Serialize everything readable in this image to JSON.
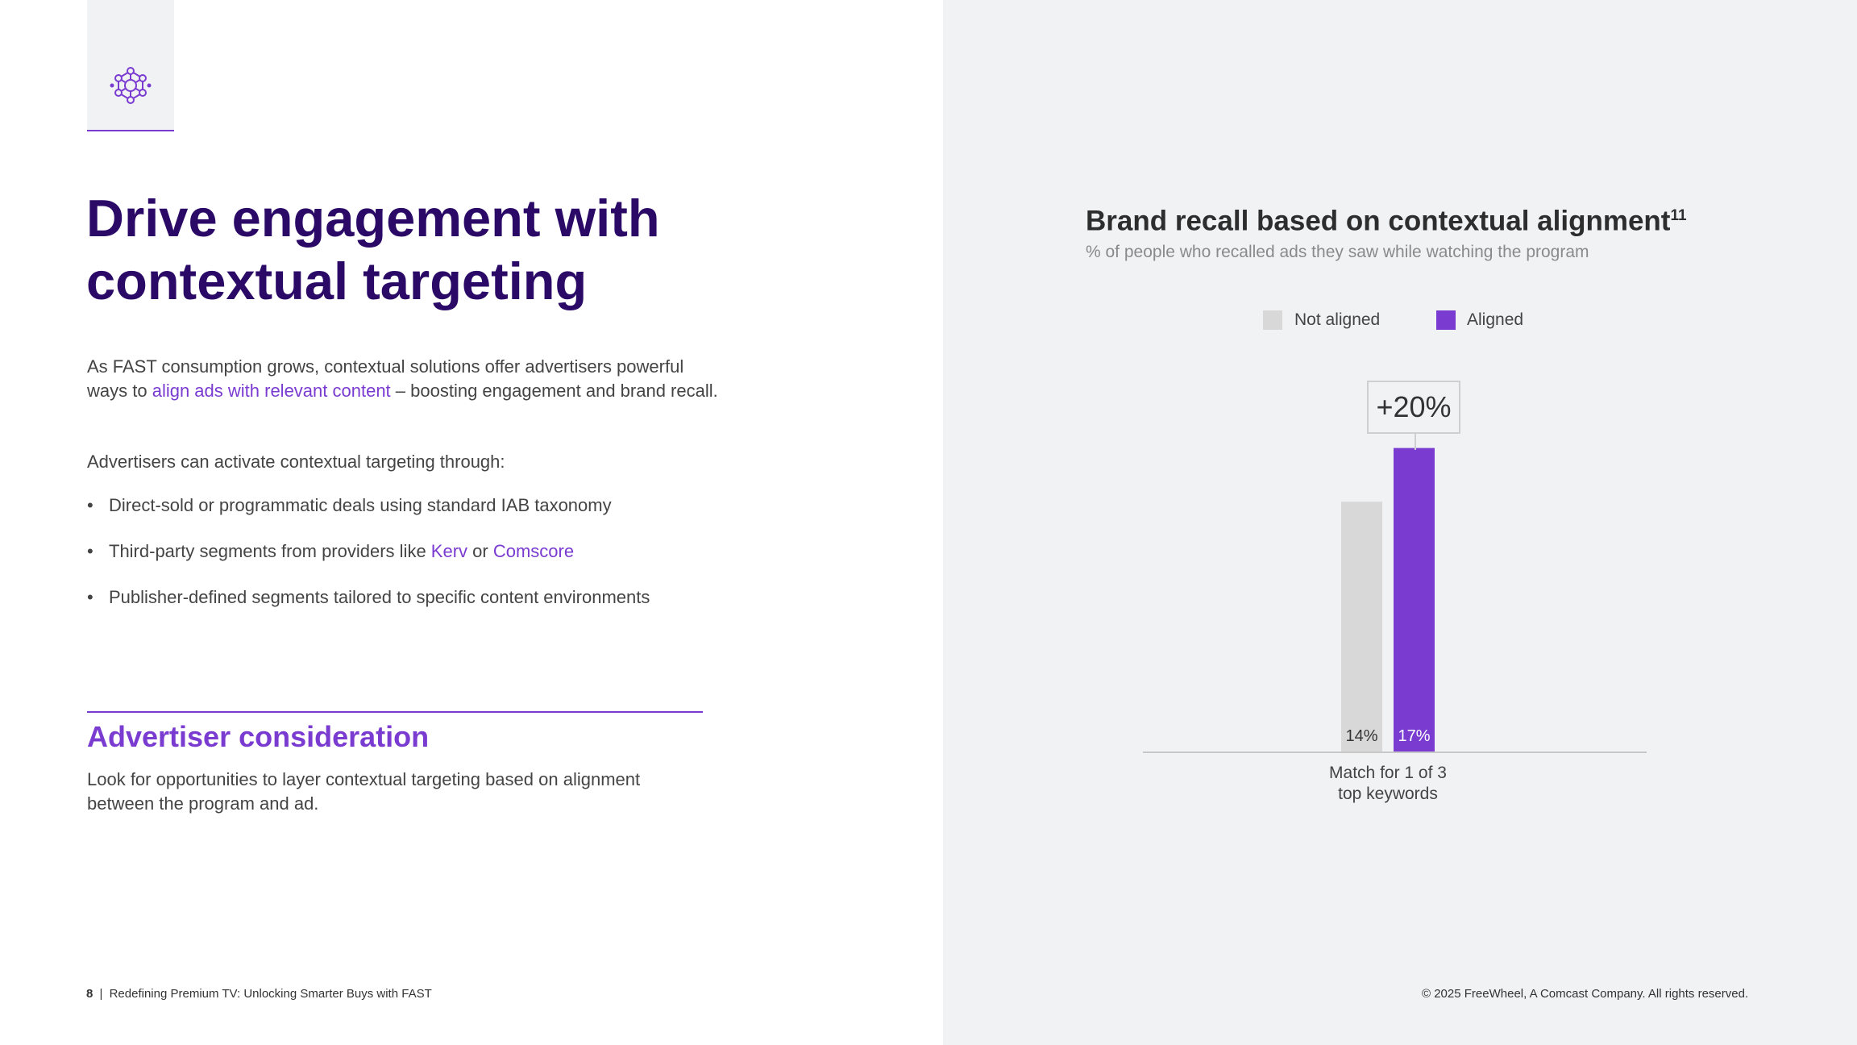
{
  "heading": {
    "line1": "Drive engagement with",
    "line2": "contextual targeting"
  },
  "intro": {
    "part1": "As FAST consumption grows, contextual solutions offer advertisers powerful ways to ",
    "link": "align ads with relevant content",
    "part2": " – boosting engagement and brand recall."
  },
  "activate_text": "Advertisers can activate contextual targeting through:",
  "bullets": {
    "b1": "Direct-sold or programmatic deals using standard IAB taxonomy",
    "b2_prefix": "Third-party segments from providers like ",
    "b2_link1": "Kerv",
    "b2_mid": " or ",
    "b2_link2": "Comscore",
    "b3": "Publisher-defined segments tailored to specific content environments"
  },
  "consideration": {
    "title": "Advertiser consideration",
    "body": "Look for opportunities to layer contextual targeting based on alignment between the program and ad."
  },
  "footer": {
    "page_number": "8",
    "separator": "|",
    "doc_title": "Redefining Premium TV: Unlocking Smarter Buys with FAST",
    "copyright": "© 2025 FreeWheel, A Comcast Company. All rights reserved."
  },
  "icon": "network-icon",
  "colors": {
    "accent": "#7a3bd1",
    "heading": "#2a0a66",
    "not_aligned": "#d8d8d8",
    "panel_bg": "#f1f2f4"
  },
  "chart_data": {
    "type": "bar",
    "title": "Brand recall based on contextual alignment",
    "title_superscript": "11",
    "subtitle": "% of people who recalled ads they saw while watching the program",
    "categories": [
      "Match for 1 of 3 top keywords"
    ],
    "category_lines": [
      "Match for 1 of 3",
      "top keywords"
    ],
    "series": [
      {
        "name": "Not aligned",
        "values": [
          14
        ],
        "label": "14%",
        "color": "#d8d8d8"
      },
      {
        "name": "Aligned",
        "values": [
          17
        ],
        "label": "17%",
        "color": "#7a3bd1"
      }
    ],
    "annotation": "+20%",
    "ylim": [
      0,
      20
    ],
    "xlabel": "",
    "ylabel": "",
    "grid": false,
    "legend": "top-center"
  }
}
